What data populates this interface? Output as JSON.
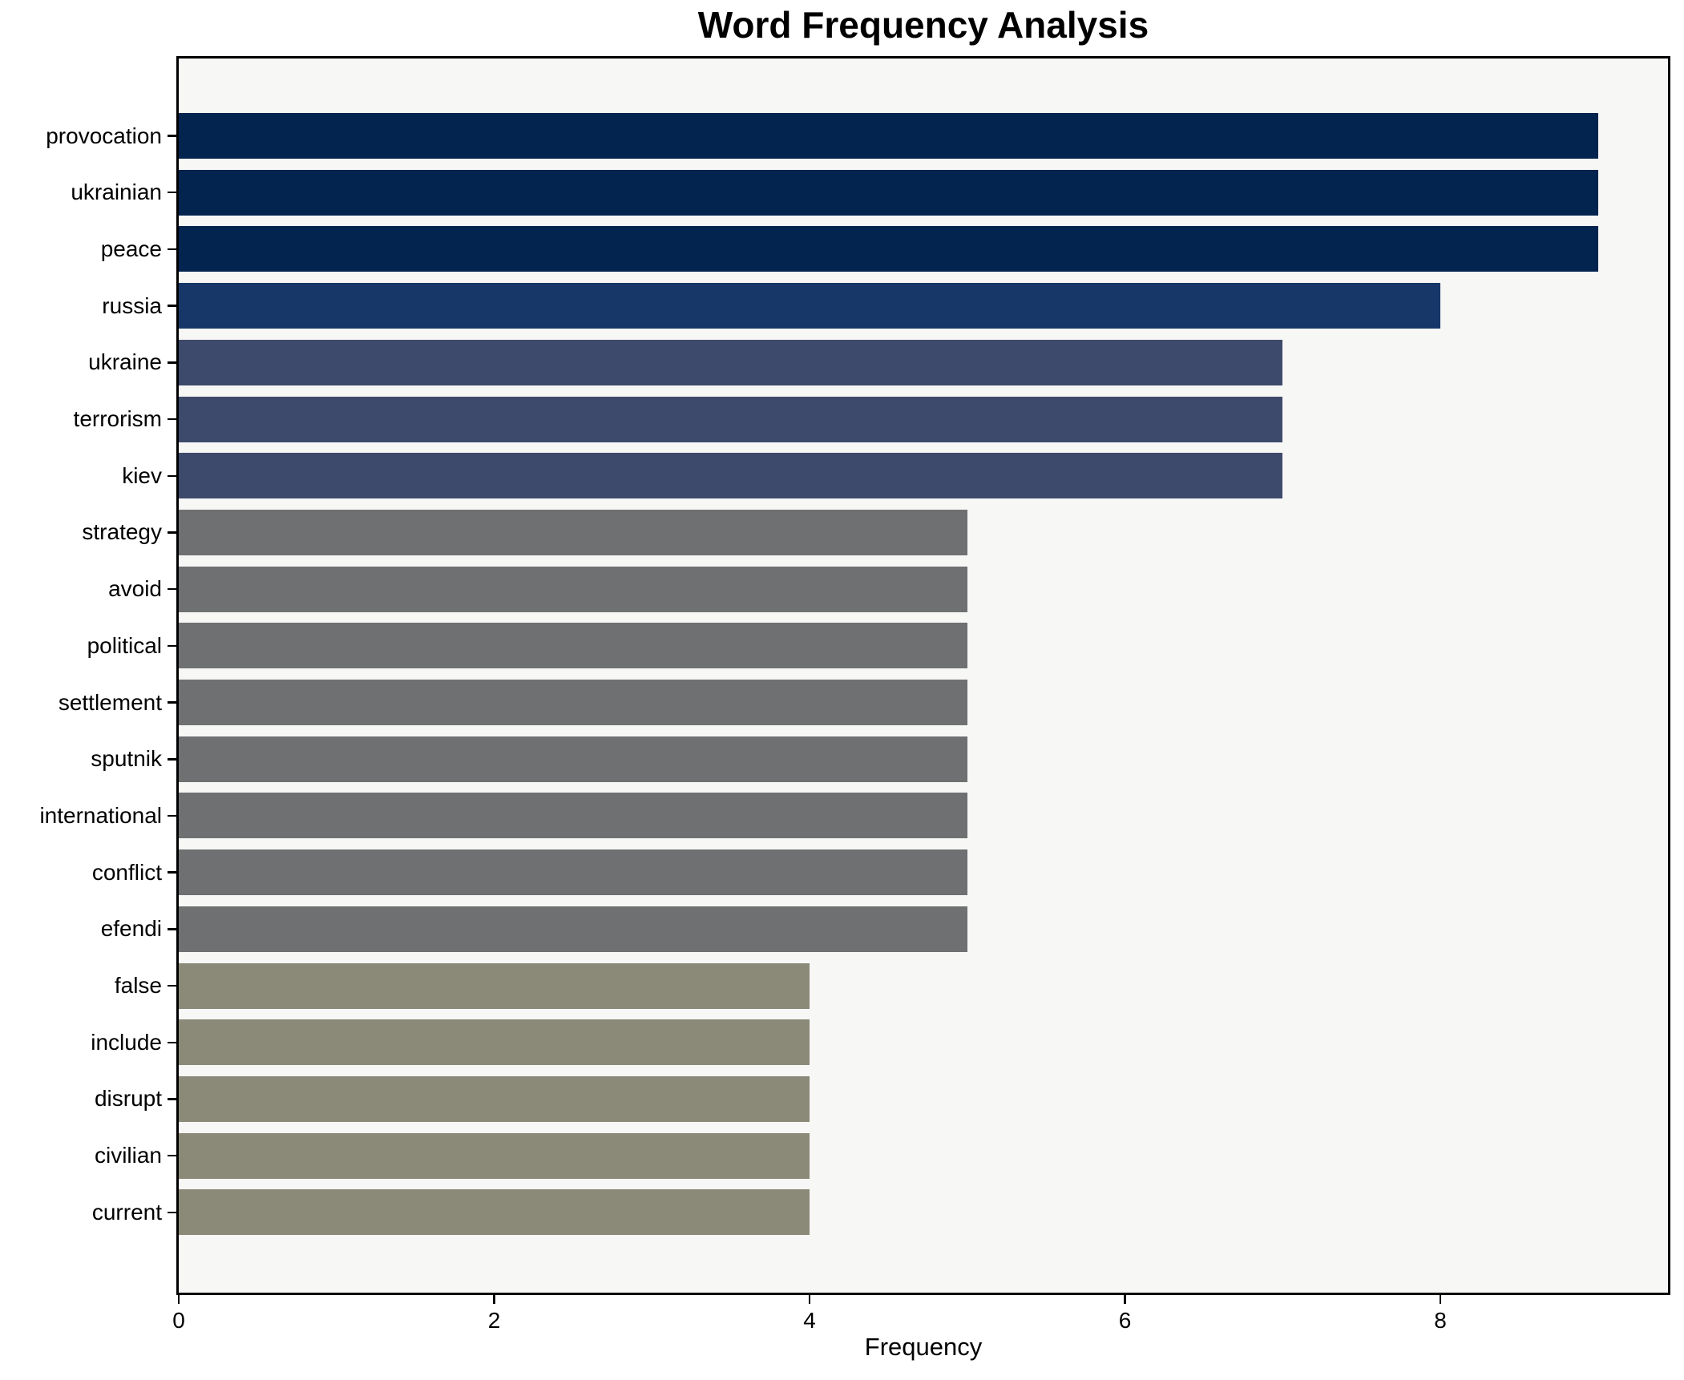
{
  "chart_data": {
    "type": "bar",
    "orientation": "horizontal",
    "title": "Word Frequency Analysis",
    "xlabel": "Frequency",
    "ylabel": "",
    "categories": [
      "provocation",
      "ukrainian",
      "peace",
      "russia",
      "ukraine",
      "terrorism",
      "kiev",
      "strategy",
      "avoid",
      "political",
      "settlement",
      "sputnik",
      "international",
      "conflict",
      "efendi",
      "false",
      "include",
      "disrupt",
      "civilian",
      "current"
    ],
    "values": [
      9,
      9,
      9,
      8,
      7,
      7,
      7,
      5,
      5,
      5,
      5,
      5,
      5,
      5,
      5,
      4,
      4,
      4,
      4,
      4
    ],
    "bar_colors": [
      "#03244f",
      "#03244f",
      "#03244f",
      "#173769",
      "#3e4a6b",
      "#3e4a6b",
      "#3e4a6b",
      "#6f7071",
      "#6f7071",
      "#6f7071",
      "#6f7071",
      "#6f7071",
      "#6f7071",
      "#6f7071",
      "#6f7071",
      "#8b8978",
      "#8b8978",
      "#8b8978",
      "#8b8978",
      "#8b8978"
    ],
    "x_ticks": [
      0,
      2,
      4,
      6,
      8
    ],
    "xlim": [
      0,
      9.45
    ],
    "grid": false,
    "legend": "none",
    "plot_background": "#f7f7f6",
    "figure_background": "#ffffff",
    "spine_color": "#000000"
  }
}
